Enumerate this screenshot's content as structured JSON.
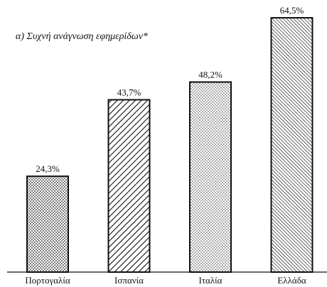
{
  "chart_data": {
    "type": "bar",
    "title": "α) Συχνή ανάγνωση εφημερίδων*",
    "categories": [
      "Πορτογαλία",
      "Ισπανία",
      "Ιταλία",
      "Ελλάδα"
    ],
    "values": [
      24.3,
      43.7,
      48.2,
      64.5
    ],
    "value_labels": [
      "24,3%",
      "43,7%",
      "48,2%",
      "64,5%"
    ],
    "patterns": [
      "dots",
      "diagonal",
      "fine-dots",
      "back-diagonal"
    ]
  }
}
